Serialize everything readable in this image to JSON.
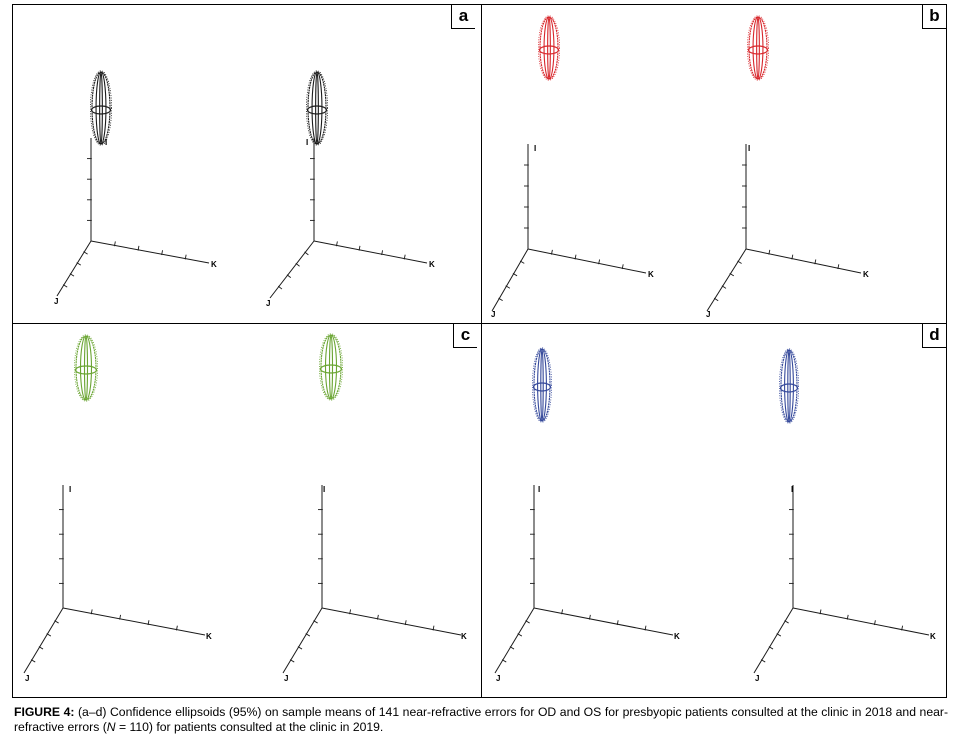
{
  "figure": {
    "panels": [
      {
        "id": "a",
        "letter": "a",
        "color": "#1a1a1a"
      },
      {
        "id": "b",
        "letter": "b",
        "color": "#d8262b"
      },
      {
        "id": "c",
        "letter": "c",
        "color": "#6aa532"
      },
      {
        "id": "d",
        "letter": "d",
        "color": "#34489a"
      }
    ],
    "axis_labels": {
      "i": "I",
      "j": "J",
      "k": "K"
    },
    "caption": {
      "label": "FIGURE 4:",
      "text_before_n": " (a–d) Confidence ellipsoids (95%) on sample means of 141 near-refractive errors for OD and OS for presbyopic patients consulted at the clinic in 2018 and near-refractive errors (",
      "n_symbol": "N",
      "text_after_n": " = 110) for patients consulted at the clinic in 2019."
    }
  }
}
